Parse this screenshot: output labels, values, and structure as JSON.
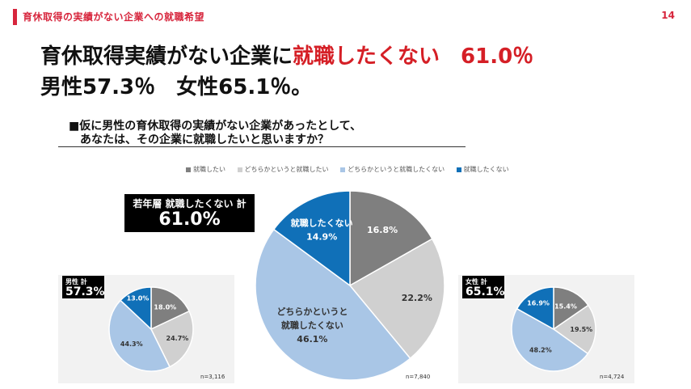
{
  "header": {
    "title": "育休取得の実績がない企業への就職希望",
    "page_number": "14"
  },
  "headline": {
    "line1_prefix": "育休取得実績がない企業に",
    "line1_highlight": "就職したくない　61.0％",
    "line2": "男性57.3％　女性65.1％。"
  },
  "question": {
    "line1": "■仮に男性の育休取得の実績がない企業があったとして、",
    "line2": "あなたは、その企業に就職したいと思いますか？"
  },
  "colors": {
    "accent": "#d51f26",
    "s1": "#7f7f7f",
    "s2": "#d0d0d0",
    "s3": "#a9c6e6",
    "s4": "#1070b8"
  },
  "callout": {
    "label": "若年層 就職したくない 計",
    "value": "61.0%"
  },
  "chart_data": {
    "type": "pie",
    "legend": [
      "就職したい",
      "どちらかというと就職したい",
      "どちらかというと就職したくない",
      "就職したくない"
    ],
    "legend_position": "top",
    "charts": [
      {
        "id": "total",
        "n": "n=7,840",
        "values": [
          16.8,
          22.2,
          46.1,
          14.9
        ],
        "labels": [
          "16.8%",
          "22.2%",
          "46.1%",
          "14.9%"
        ],
        "slice_captions": [
          "",
          "",
          "どちらかというと|就職したくない",
          "就職したくない"
        ]
      },
      {
        "id": "male",
        "title": "男性 計",
        "total_value": "57.3%",
        "n": "n=3,116",
        "values": [
          18.0,
          24.7,
          44.3,
          13.0
        ],
        "labels": [
          "18.0%",
          "24.7%",
          "44.3%",
          "13.0%"
        ]
      },
      {
        "id": "female",
        "title": "女性 計",
        "total_value": "65.1%",
        "n": "n=4,724",
        "values": [
          15.4,
          19.5,
          48.2,
          16.9
        ],
        "labels": [
          "15.4%",
          "19.5%",
          "48.2%",
          "16.9%"
        ]
      }
    ]
  }
}
